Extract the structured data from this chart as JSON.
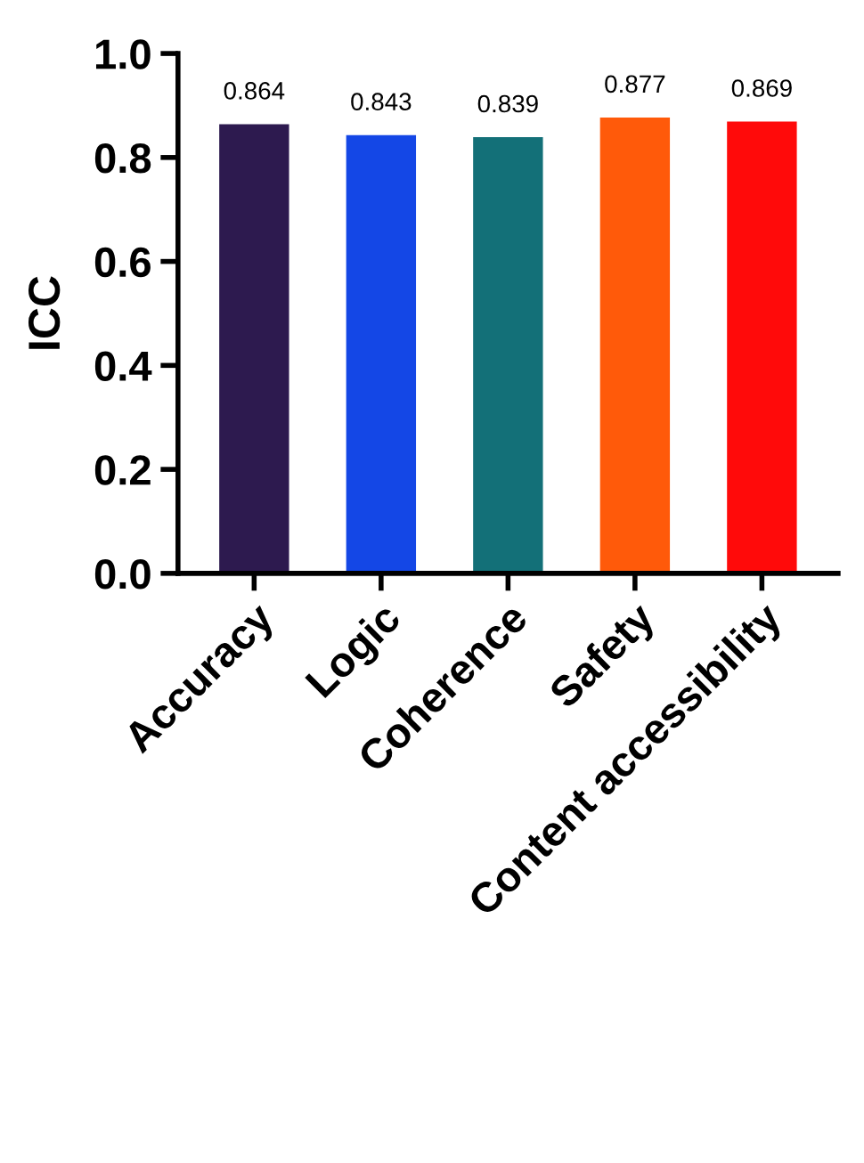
{
  "chart_data": {
    "type": "bar",
    "ylabel": "ICC",
    "categories": [
      "Accuracy",
      "Logic",
      "Coherence",
      "Safety",
      "Content accessibility"
    ],
    "values": [
      0.864,
      0.843,
      0.839,
      0.877,
      0.869
    ],
    "colors": [
      "#2d1a4f",
      "#1447e6",
      "#137078",
      "#ff5a0a",
      "#ff0a0a"
    ],
    "value_labels": [
      "0.864",
      "0.843",
      "0.839",
      "0.877",
      "0.869"
    ],
    "ylim": [
      0,
      1.0
    ],
    "yticks": [
      {
        "value": 0,
        "label": "0.0"
      },
      {
        "value": 0.2,
        "label": "0.2"
      },
      {
        "value": 0.4,
        "label": "0.4"
      },
      {
        "value": 0.6,
        "label": "0.6"
      },
      {
        "value": 0.8,
        "label": "0.8"
      },
      {
        "value": 1.0,
        "label": "1.0"
      }
    ],
    "grid": false,
    "legend": false
  }
}
